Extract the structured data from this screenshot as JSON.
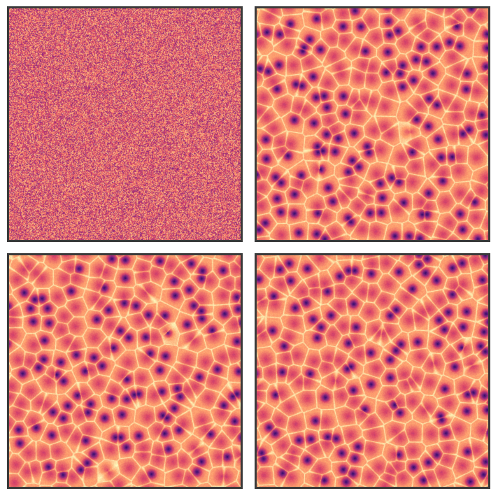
{
  "colormap": {
    "name": "magma",
    "stops": [
      "#000004",
      "#3b0f70",
      "#8c2981",
      "#de4968",
      "#fe9f6d",
      "#fcfdbf"
    ]
  },
  "panels": [
    {
      "name": "random-noise-field",
      "pattern": "white-noise"
    },
    {
      "name": "evolved-cellular-field-1",
      "pattern": "cellular"
    },
    {
      "name": "evolved-cellular-field-2",
      "pattern": "cellular"
    },
    {
      "name": "evolved-cellular-field-3",
      "pattern": "cellular"
    }
  ]
}
